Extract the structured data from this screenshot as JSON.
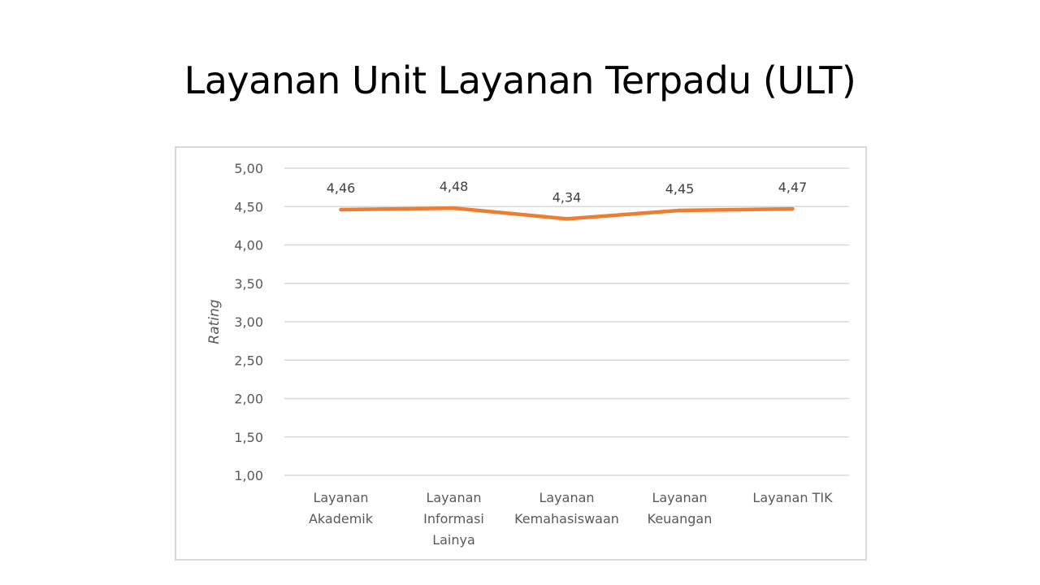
{
  "slide": {
    "title": "Layanan Unit Layanan Terpadu (ULT)"
  },
  "chart_data": {
    "type": "line",
    "title": "",
    "categories": [
      [
        "Layanan",
        "Akademik"
      ],
      [
        "Layanan",
        "Informasi",
        "Lainya"
      ],
      [
        "Layanan",
        "Kemahasiswaan"
      ],
      [
        "Layanan",
        "Keuangan"
      ],
      [
        "Layanan TIK"
      ]
    ],
    "values": [
      4.46,
      4.48,
      4.34,
      4.45,
      4.47
    ],
    "data_labels": [
      "4,46",
      "4,48",
      "4,34",
      "4,45",
      "4,47"
    ],
    "ylabel": "Rating",
    "xlabel": "",
    "ylim": [
      1.0,
      5.0
    ],
    "yticks": [
      1.0,
      1.5,
      2.0,
      2.5,
      3.0,
      3.5,
      4.0,
      4.5,
      5.0
    ],
    "ytick_labels": [
      "1,00",
      "1,50",
      "2,00",
      "2,50",
      "3,00",
      "3,50",
      "4,00",
      "4,50",
      "5,00"
    ],
    "grid": true,
    "legend": "none",
    "colors": {
      "line": "#ed7d31",
      "grid": "#d9d9d9",
      "frame": "#d9d9d9"
    }
  }
}
